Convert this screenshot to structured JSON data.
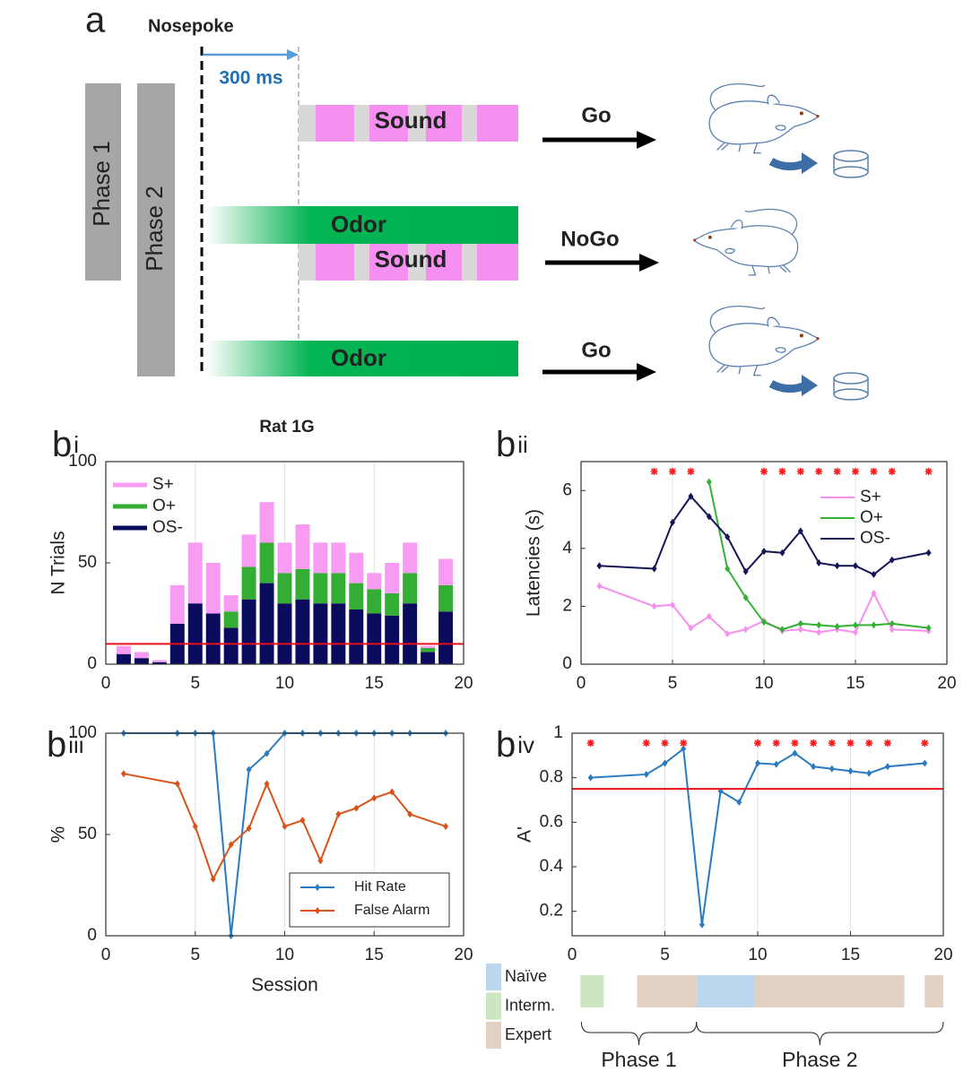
{
  "diagram": {
    "label": "a",
    "nosepoke": "Nosepoke",
    "delay": "300 ms",
    "phases": [
      "Phase 1",
      "Phase 2"
    ],
    "rows": [
      {
        "stimuli": [
          "Sound"
        ],
        "response": "Go"
      },
      {
        "stimuli": [
          "Odor",
          "Sound"
        ],
        "response": "NoGo"
      },
      {
        "stimuli": [
          "Odor"
        ],
        "response": "Go"
      }
    ]
  },
  "chart_data": [
    {
      "type": "bar",
      "panel": "b",
      "panel_sub": "i",
      "title": "Rat 1G",
      "ylabel": "N Trials",
      "x": [
        1,
        2,
        3,
        4,
        5,
        6,
        7,
        8,
        9,
        10,
        11,
        12,
        13,
        14,
        15,
        16,
        17,
        18,
        19
      ],
      "series": [
        {
          "name": "S+",
          "color": "#f79cf2",
          "values": [
            4,
            3,
            1,
            19,
            30,
            25,
            8,
            16,
            20,
            15,
            22,
            15,
            15,
            15,
            8,
            15,
            15,
            1,
            13
          ]
        },
        {
          "name": "O+",
          "color": "#34ad34",
          "values": [
            0,
            0,
            0,
            0,
            0,
            0,
            8,
            16,
            20,
            15,
            15,
            15,
            15,
            13,
            12,
            11,
            15,
            2,
            13
          ]
        },
        {
          "name": "OS-",
          "color": "#0b0b5e",
          "values": [
            5,
            3,
            1,
            20,
            30,
            25,
            18,
            32,
            40,
            30,
            32,
            30,
            30,
            27,
            25,
            24,
            30,
            6,
            26
          ]
        }
      ],
      "stacked": true,
      "xlim": [
        0,
        20
      ],
      "xticks": [
        0,
        5,
        10,
        15,
        20
      ],
      "ylim": [
        0,
        100
      ],
      "yticks": [
        0,
        50,
        100
      ],
      "threshold": 10,
      "threshold_color": "#e8101a",
      "grid": true,
      "legend": "upper left"
    },
    {
      "type": "line",
      "panel": "b",
      "panel_sub": "ii",
      "ylabel": "Latencies (s)",
      "x": [
        1,
        4,
        5,
        6,
        7,
        8,
        9,
        10,
        11,
        12,
        13,
        14,
        15,
        16,
        17,
        19
      ],
      "series": [
        {
          "name": "S+",
          "color": "#f690ee",
          "values": [
            2.7,
            2.0,
            2.05,
            1.25,
            1.65,
            1.05,
            1.2,
            1.5,
            1.15,
            1.2,
            1.1,
            1.2,
            1.1,
            2.45,
            1.2,
            1.15
          ]
        },
        {
          "name": "O+",
          "color": "#33b233",
          "values": [
            null,
            null,
            null,
            null,
            6.3,
            3.3,
            2.3,
            1.45,
            1.2,
            1.4,
            1.35,
            1.3,
            1.35,
            1.35,
            1.4,
            1.25
          ]
        },
        {
          "name": "OS-",
          "color": "#151556",
          "values": [
            3.4,
            3.3,
            4.9,
            5.8,
            5.1,
            4.4,
            3.2,
            3.9,
            3.85,
            4.6,
            3.5,
            3.4,
            3.4,
            3.1,
            3.6,
            3.85
          ]
        }
      ],
      "significant_sessions": [
        4,
        5,
        6,
        10,
        11,
        12,
        13,
        14,
        15,
        16,
        17,
        19
      ],
      "marker_color": "#ff1a1a",
      "xlim": [
        0,
        20
      ],
      "xticks": [
        0,
        5,
        10,
        15,
        20
      ],
      "ylim": [
        0,
        7
      ],
      "yticks": [
        0,
        2,
        4,
        6
      ],
      "grid": true,
      "legend": "upper right"
    },
    {
      "type": "line",
      "panel": "b",
      "panel_sub": "iii",
      "ylabel": "%",
      "xlabel": "Session",
      "x": [
        1,
        4,
        5,
        6,
        7,
        8,
        9,
        10,
        11,
        12,
        13,
        14,
        15,
        16,
        17,
        19
      ],
      "series": [
        {
          "name": "Hit Rate",
          "color": "#2a7bc0",
          "values": [
            100,
            100,
            100,
            100,
            0,
            82,
            90,
            100,
            100,
            100,
            100,
            100,
            100,
            100,
            100,
            100
          ]
        },
        {
          "name": "False Alarm",
          "color": "#d95319",
          "values": [
            80,
            75,
            54,
            28,
            45,
            53,
            75,
            54,
            57,
            37,
            60,
            63,
            68,
            71,
            60,
            54
          ]
        }
      ],
      "xlim": [
        0,
        20
      ],
      "xticks": [
        0,
        5,
        10,
        15,
        20
      ],
      "ylim": [
        0,
        100
      ],
      "yticks": [
        0,
        50,
        100
      ],
      "grid": true,
      "legend": "lower right"
    },
    {
      "type": "line",
      "panel": "b",
      "panel_sub": "iv",
      "ylabel": "A'",
      "x": [
        1,
        4,
        5,
        6,
        7,
        8,
        9,
        10,
        11,
        12,
        13,
        14,
        15,
        16,
        17,
        19
      ],
      "series": [
        {
          "color": "#2a7bc0",
          "values": [
            0.8,
            0.815,
            0.865,
            0.93,
            0.14,
            0.74,
            0.69,
            0.865,
            0.86,
            0.91,
            0.85,
            0.84,
            0.83,
            0.82,
            0.85,
            0.865
          ]
        }
      ],
      "significant_sessions": [
        1,
        4,
        5,
        6,
        10,
        11,
        12,
        13,
        14,
        15,
        16,
        17,
        19
      ],
      "marker_color": "#ff1a1a",
      "threshold": 0.75,
      "threshold_color": "#e8101a",
      "xlim": [
        0,
        20
      ],
      "xticks": [
        0,
        5,
        10,
        15,
        20
      ],
      "ylim": [
        0.09,
        1
      ],
      "yticks": [
        0.2,
        0.4,
        0.6,
        0.8,
        1
      ],
      "grid": true
    }
  ],
  "phase_bar": {
    "legend": [
      {
        "label": "Naïve",
        "color": "#bcd6ee"
      },
      {
        "label": "Interm.",
        "color": "#cde6c2"
      },
      {
        "label": "Expert",
        "color": "#e2d0c2"
      }
    ],
    "segments": [
      {
        "start": 0.45,
        "end": 1.7,
        "color": "#cde6c2"
      },
      {
        "start": 3.5,
        "end": 6.7,
        "color": "#e2d0c2"
      },
      {
        "start": 6.7,
        "end": 9.85,
        "color": "#bcd6ee"
      },
      {
        "start": 9.85,
        "end": 17.9,
        "color": "#e2d0c2"
      },
      {
        "start": 19.0,
        "end": 20.0,
        "color": "#e2d0c2"
      }
    ],
    "phases": [
      {
        "label": "Phase 1",
        "start": 0.5,
        "end": 6.7
      },
      {
        "label": "Phase 2",
        "start": 6.7,
        "end": 20.0
      }
    ]
  }
}
